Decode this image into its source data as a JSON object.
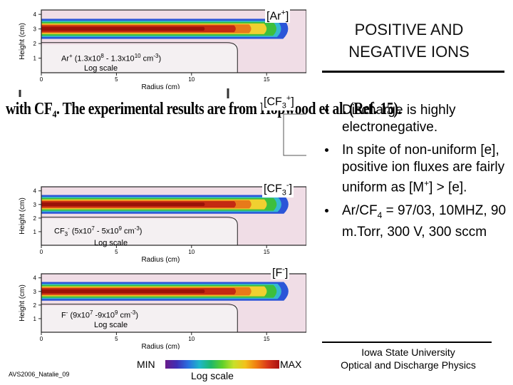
{
  "title": {
    "line1": "POSITIVE AND",
    "line2": "NEGATIVE IONS"
  },
  "bullets": [
    {
      "text": "Discharge is highly electronegative."
    },
    {
      "text_pre": "In spite of non-uniform [e], positive ion fluxes are fairly uniform as [M",
      "sup": "+",
      "text_post": "] > [e]."
    },
    {
      "text_pre": "Ar/CF",
      "sub": "4",
      "text_post": " = 97/03, 10MHZ, 90 m.Torr, 300 V, 300 sccm"
    }
  ],
  "plots": [
    {
      "id": "ar",
      "species_base": "[Ar",
      "species_sup": "+",
      "species_end": "]",
      "inset_line1": "Ar",
      "inset_sup": "+",
      "inset_range": " (1.3x10",
      "e1": "8",
      "mid": " - 1.3x10",
      "e2": "10",
      "unit": " cm",
      "e3": "-3",
      "close": ")",
      "inset_line2": "Log scale"
    },
    {
      "id": "cf3p",
      "species_base": "[CF",
      "species_sub": "3",
      "species_sup": "+",
      "species_end": "]"
    },
    {
      "id": "cf3m",
      "species_base": "[CF",
      "species_sub": "3",
      "species_sup": "-",
      "species_end": "]",
      "inset_line1": "CF",
      "inset_sub": "3",
      "inset_sup": "-",
      "inset_range": " (5x10",
      "e1": "7",
      "mid": " - 5x10",
      "e2": "9",
      "unit": " cm",
      "e3": "-3",
      "close": ")",
      "inset_line2": "Log scale"
    },
    {
      "id": "fm",
      "species_base": "[F",
      "species_sup": "-",
      "species_end": "]",
      "inset_line1": "F",
      "inset_sup": "-",
      "inset_range": " (9x10",
      "e1": "7",
      "mid": " -9x10",
      "e2": "9",
      "unit": " cm",
      "e3": "-3",
      "close": ")",
      "inset_line2": "Log scale"
    }
  ],
  "axes": {
    "ylabel": "Height (cm)",
    "xlabel": "Radius (cm)",
    "xticks": [
      "0",
      "5",
      "10",
      "15"
    ],
    "yticks": [
      "1",
      "2",
      "3",
      "4"
    ]
  },
  "scan_caption": "with CF₄. The experimental results are from Hopwood et al. (Ref. 15).",
  "colorbar": {
    "min_label": "MIN",
    "max_label": "MAX",
    "scale_label": "Log scale",
    "colors": [
      "#6a1b8a",
      "#3f2fb5",
      "#2a6fe0",
      "#1fb7c9",
      "#1fb86a",
      "#5fd02a",
      "#c8e02a",
      "#f2c21a",
      "#f07d12",
      "#d8361a",
      "#a81010"
    ]
  },
  "footer": {
    "code": "AVS2006_Natalie_09",
    "line1": "Iowa State University",
    "line2": "Optical and Discharge Physics"
  },
  "palette": {
    "red": "#c42a12",
    "dred": "#9a1208",
    "orange": "#e87a1a",
    "yellow": "#f0d030",
    "green": "#3dbf3d",
    "cyan": "#35b8d0",
    "blue": "#2a55d8",
    "plasma_bg": "#f0dde6"
  }
}
